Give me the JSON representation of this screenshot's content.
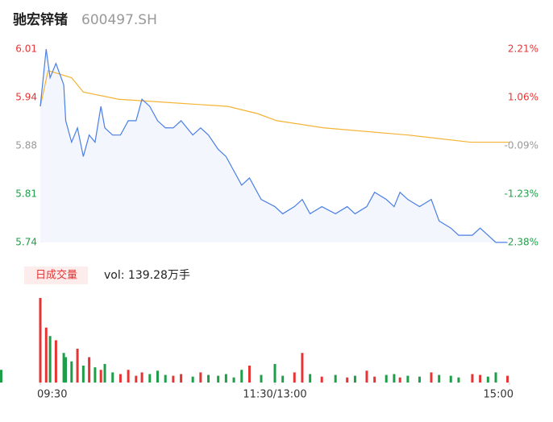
{
  "chart_data": {
    "type": "line",
    "title": "驰宏锌锗",
    "subtitle": "600497.SH",
    "xlim": [
      0,
      240
    ],
    "xticks": [
      {
        "value": 0,
        "label": "09:30"
      },
      {
        "value": 120,
        "label": "11:30/13:00"
      },
      {
        "value": 240,
        "label": "15:00"
      }
    ],
    "ylim": [
      5.74,
      6.01
    ],
    "yticks": [
      6.01,
      {
        "value": 5.9425,
        "label": "5.94"
      },
      {
        "value": 5.875,
        "label": "5.88"
      },
      {
        "value": 5.8075,
        "label": "5.81"
      },
      5.74
    ],
    "y2lim": [
      -2.38,
      2.21
    ],
    "y2ticks": [
      {
        "value": 2.21,
        "label": "2.21%"
      },
      {
        "value": 1.0625,
        "label": "1.06%"
      },
      {
        "value": -0.085,
        "label": "-0.09%"
      },
      {
        "value": -1.2325,
        "label": "-1.23%"
      },
      {
        "value": -2.38,
        "label": "-2.38%"
      }
    ],
    "up_color": "#e63434",
    "flat_color": "#999999",
    "down_color": "#1f9e4a",
    "series": [
      {
        "color": "#4a7fe6",
        "x": [
          0,
          3,
          5,
          8,
          12,
          13,
          16,
          19,
          22,
          25,
          28,
          31,
          33,
          37,
          41,
          45,
          49,
          52,
          56,
          60,
          64,
          68,
          72,
          78,
          82,
          86,
          91,
          95,
          99,
          103,
          107,
          113,
          120,
          124,
          130,
          134,
          138,
          144,
          151,
          157,
          161,
          167,
          171,
          177,
          181,
          184,
          188,
          194,
          200,
          204,
          210,
          214,
          221,
          225,
          229,
          233,
          239
        ],
        "values": [
          5.93,
          6.01,
          5.97,
          5.99,
          5.96,
          5.91,
          5.88,
          5.9,
          5.86,
          5.89,
          5.88,
          5.93,
          5.9,
          5.89,
          5.89,
          5.91,
          5.91,
          5.94,
          5.93,
          5.91,
          5.9,
          5.9,
          5.91,
          5.89,
          5.9,
          5.89,
          5.87,
          5.86,
          5.84,
          5.82,
          5.83,
          5.8,
          5.79,
          5.78,
          5.79,
          5.8,
          5.78,
          5.79,
          5.78,
          5.79,
          5.78,
          5.79,
          5.81,
          5.8,
          5.79,
          5.81,
          5.8,
          5.79,
          5.8,
          5.77,
          5.76,
          5.75,
          5.75,
          5.76,
          5.75,
          5.74,
          5.74
        ]
      },
      {
        "color": "#f5b335",
        "x": [
          0,
          4,
          16,
          22,
          40,
          96,
          111,
          121,
          145,
          188,
          220,
          240
        ],
        "values": [
          5.93,
          5.98,
          5.97,
          5.95,
          5.94,
          5.93,
          5.92,
          5.91,
          5.9,
          5.89,
          5.88,
          5.88
        ]
      }
    ],
    "volume": {
      "label": "日成交量",
      "text": "vol: 139.28万手",
      "values": [
        100,
        65,
        55,
        50,
        35,
        30,
        25,
        40,
        20,
        30,
        18,
        15,
        22,
        12,
        10,
        15,
        8,
        12,
        10,
        14,
        9,
        8,
        10,
        7,
        12,
        9,
        8,
        10,
        6,
        15,
        20,
        9,
        22,
        8,
        12,
        35,
        10,
        7,
        9,
        6,
        8,
        14,
        7,
        9,
        10,
        6,
        8,
        7,
        12,
        9,
        8,
        6,
        10,
        9,
        7,
        12,
        8,
        14,
        10,
        9,
        15
      ]
    }
  }
}
